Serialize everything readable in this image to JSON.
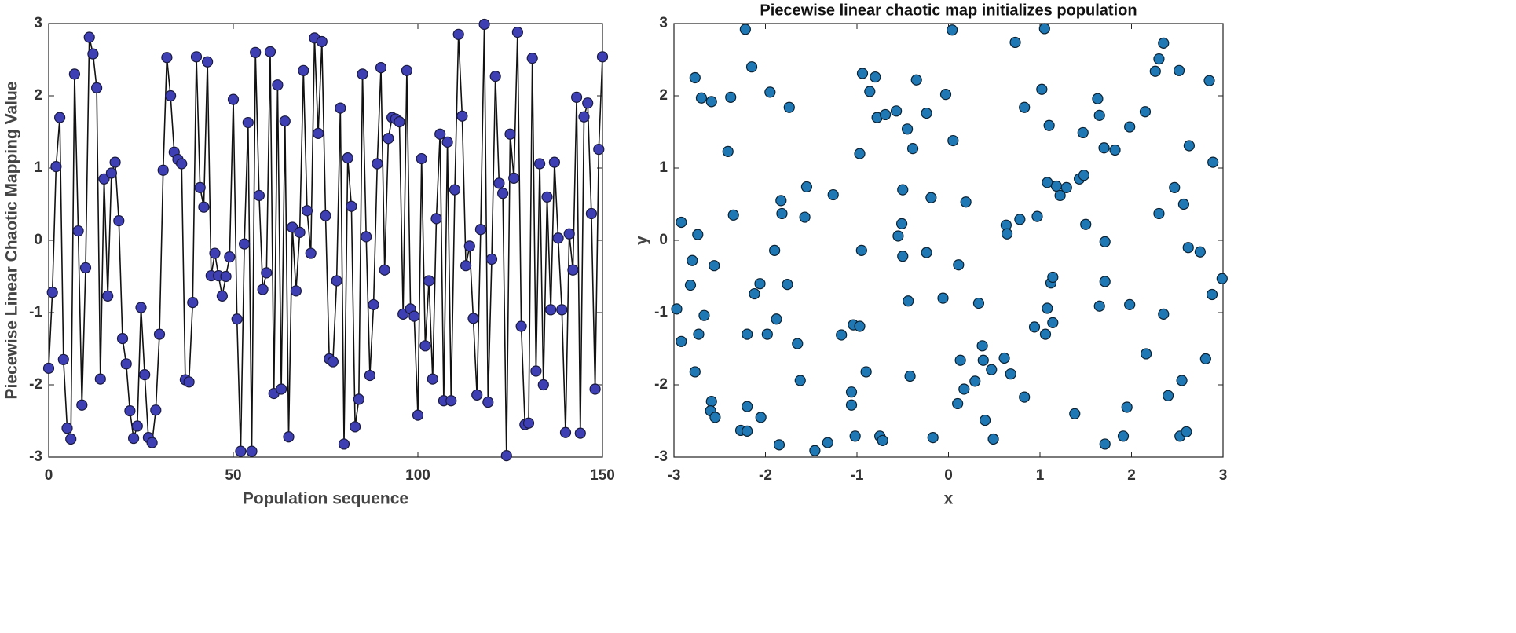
{
  "chart_data": [
    {
      "type": "line",
      "xlabel": "Population sequence",
      "ylabel": "Piecewise Linear Chaotic Mapping Value",
      "xlim": [
        0,
        150
      ],
      "ylim": [
        -3,
        3
      ],
      "xticks": [
        0,
        50,
        100,
        150
      ],
      "yticks": [
        -3,
        -2,
        -1,
        0,
        1,
        2,
        3
      ],
      "series": [
        {
          "color": "#3d3fb3",
          "x": [
            0,
            1,
            2,
            3,
            4,
            5,
            6,
            7,
            8,
            9,
            10,
            11,
            12,
            13,
            14,
            15,
            16,
            17,
            18,
            19,
            20,
            21,
            22,
            23,
            24,
            25,
            26,
            27,
            28,
            29,
            30,
            31,
            32,
            33,
            34,
            35,
            36,
            37,
            38,
            39,
            40,
            41,
            42,
            43,
            44,
            45,
            46,
            47,
            48,
            49,
            50,
            51,
            52,
            53,
            54,
            55,
            56,
            57,
            58,
            59,
            60,
            61,
            62,
            63,
            64,
            65,
            66,
            67,
            68,
            69,
            70,
            71,
            72,
            73,
            74,
            75,
            76,
            77,
            78,
            79,
            80,
            81,
            82,
            83,
            84,
            85,
            86,
            87,
            88,
            89,
            90,
            91,
            92,
            93,
            94,
            95,
            96,
            97,
            98,
            99,
            100,
            101,
            102,
            103,
            104,
            105,
            106,
            107,
            108,
            109,
            110,
            111,
            112,
            113,
            114,
            115,
            116,
            117,
            118,
            119,
            120,
            121,
            122,
            123,
            124,
            125,
            126,
            127,
            128,
            129,
            130,
            131,
            132,
            133,
            134,
            135,
            136,
            137,
            138,
            139,
            140,
            141,
            142,
            143,
            144,
            145,
            146,
            147,
            148,
            149,
            150
          ],
          "values": [
            -1.77,
            -0.72,
            1.02,
            1.7,
            -1.65,
            -2.6,
            -2.75,
            2.3,
            0.13,
            -2.28,
            -0.38,
            2.81,
            2.58,
            2.11,
            -1.92,
            0.85,
            -0.77,
            0.93,
            1.08,
            0.27,
            -1.36,
            -1.71,
            -2.36,
            -2.74,
            -2.57,
            -0.93,
            -1.86,
            -2.73,
            -2.8,
            -2.35,
            -1.3,
            0.97,
            2.53,
            2.0,
            1.22,
            1.12,
            1.06,
            -1.93,
            -1.96,
            -0.86,
            2.54,
            0.73,
            0.46,
            2.47,
            -0.49,
            -0.18,
            -0.49,
            -0.77,
            -0.5,
            -0.23,
            1.95,
            -1.09,
            -2.92,
            -0.05,
            1.63,
            -2.92,
            2.6,
            0.62,
            -0.68,
            -0.45,
            2.61,
            -2.12,
            2.15,
            -2.06,
            1.65,
            -2.72,
            0.18,
            -0.7,
            0.11,
            2.35,
            0.41,
            -0.18,
            2.8,
            1.48,
            2.75,
            0.34,
            -1.64,
            -1.68,
            -0.56,
            1.83,
            -2.82,
            1.14,
            0.47,
            -2.58,
            -2.2,
            2.3,
            0.05,
            -1.87,
            -0.89,
            1.06,
            2.39,
            -0.41,
            1.41,
            1.7,
            1.68,
            1.64,
            -1.02,
            2.35,
            -0.95,
            -1.05,
            -2.42,
            1.13,
            -1.46,
            -0.56,
            -1.92,
            0.3,
            1.47,
            -2.22,
            1.36,
            -2.22,
            0.7,
            2.85,
            1.72,
            -0.35,
            -0.08,
            -1.08,
            -2.14,
            0.15,
            2.99,
            -2.24,
            -0.26,
            2.27,
            0.79,
            0.65,
            -2.98,
            1.47,
            0.86,
            2.88,
            -1.19,
            -2.55,
            -2.53,
            2.52,
            -1.81,
            1.06,
            -2.0,
            0.6,
            -0.96,
            1.08,
            0.03,
            -0.96,
            -2.66,
            0.09,
            -0.41,
            1.98,
            -2.67,
            1.71,
            1.9,
            0.37,
            -2.06,
            1.26,
            2.54
          ]
        }
      ]
    },
    {
      "type": "scatter",
      "title": "Piecewise linear chaotic map initializes population",
      "xlabel": "x",
      "ylabel": "y",
      "xlim": [
        -3,
        3
      ],
      "ylim": [
        -3,
        3
      ],
      "xticks": [
        -3,
        -2,
        -1,
        0,
        1,
        2,
        3
      ],
      "yticks": [
        -3,
        -2,
        -1,
        0,
        1,
        2,
        3
      ],
      "series": [
        {
          "color": "#1f78b4",
          "x": [
            -2.97,
            -2.92,
            -2.92,
            -2.8,
            -2.82,
            -2.77,
            -2.77,
            -2.74,
            -2.73,
            -2.7,
            -2.67,
            -2.59,
            -2.56,
            -2.59,
            -2.6,
            -2.55,
            -2.41,
            -2.38,
            -2.35,
            -2.27,
            -2.22,
            -2.2,
            -2.2,
            -2.2,
            -2.15,
            -2.12,
            -2.06,
            -2.05,
            -1.98,
            -1.95,
            -1.9,
            -1.88,
            -1.85,
            -1.83,
            -1.82,
            -1.76,
            -1.74,
            -1.65,
            -1.62,
            -1.57,
            -1.55,
            -1.46,
            -1.32,
            -1.26,
            -1.17,
            -1.06,
            -1.06,
            -1.04,
            -1.02,
            -0.97,
            -0.97,
            -0.95,
            -0.94,
            -0.9,
            -0.86,
            -0.8,
            -0.78,
            -0.75,
            -0.72,
            -0.69,
            -0.57,
            -0.55,
            -0.51,
            -0.5,
            -0.5,
            -0.45,
            -0.44,
            -0.39,
            -0.35,
            -0.42,
            -0.24,
            -0.24,
            -0.19,
            -0.17,
            -0.06,
            -0.03,
            0.04,
            0.05,
            0.1,
            0.11,
            0.13,
            0.17,
            0.19,
            0.29,
            0.33,
            0.37,
            0.38,
            0.4,
            0.47,
            0.49,
            0.61,
            0.63,
            0.64,
            0.68,
            0.73,
            0.78,
            0.83,
            0.83,
            0.94,
            0.97,
            1.02,
            1.05,
            1.06,
            1.08,
            1.08,
            1.1,
            1.12,
            1.14,
            1.14,
            1.18,
            1.22,
            1.29,
            1.38,
            1.43,
            1.47,
            1.48,
            1.5,
            1.63,
            1.65,
            1.65,
            1.7,
            1.71,
            1.71,
            1.71,
            1.82,
            1.91,
            1.95,
            1.98,
            1.98,
            2.15,
            2.16,
            2.26,
            2.3,
            2.3,
            2.35,
            2.35,
            2.4,
            2.47,
            2.52,
            2.53,
            2.55,
            2.57,
            2.6,
            2.62,
            2.63,
            2.75,
            2.81,
            2.85,
            2.88,
            2.89,
            2.99
          ],
          "values": [
            -0.95,
            0.25,
            -1.4,
            -0.28,
            -0.62,
            2.25,
            -1.82,
            0.08,
            -1.3,
            1.97,
            -1.04,
            1.92,
            -0.35,
            -2.23,
            -2.36,
            -2.45,
            1.23,
            1.98,
            0.35,
            -2.63,
            2.92,
            -1.3,
            -2.3,
            -2.64,
            2.4,
            -0.74,
            -0.6,
            -2.45,
            -1.3,
            2.05,
            -0.14,
            -1.09,
            -2.83,
            0.55,
            0.37,
            -0.61,
            1.84,
            -1.43,
            -1.94,
            0.32,
            0.74,
            -2.91,
            -2.8,
            0.63,
            -1.31,
            -2.1,
            -2.28,
            -1.17,
            -2.71,
            1.2,
            -1.19,
            -0.14,
            2.31,
            -1.82,
            2.06,
            2.26,
            1.7,
            -2.71,
            -2.77,
            1.74,
            1.79,
            0.06,
            0.23,
            -0.22,
            0.7,
            1.54,
            -0.84,
            1.27,
            2.22,
            -1.88,
            1.76,
            -0.17,
            0.59,
            -2.73,
            -0.8,
            2.02,
            2.91,
            1.38,
            -2.26,
            -0.34,
            -1.66,
            -2.06,
            0.53,
            -1.95,
            -0.87,
            -1.46,
            -1.66,
            -2.49,
            -1.79,
            -2.75,
            -1.63,
            0.21,
            0.09,
            -1.85,
            2.74,
            0.29,
            -2.17,
            1.84,
            -1.2,
            0.33,
            2.09,
            2.93,
            -1.3,
            -0.94,
            0.8,
            1.59,
            -0.59,
            -1.14,
            -0.51,
            0.75,
            0.62,
            0.73,
            -2.4,
            0.85,
            1.49,
            0.9,
            0.22,
            1.96,
            -0.91,
            1.73,
            1.28,
            -0.02,
            -0.57,
            -2.82,
            1.25,
            -2.71,
            -2.31,
            1.57,
            -0.89,
            1.78,
            -1.57,
            2.34,
            2.51,
            0.37,
            2.73,
            -1.02,
            -2.15,
            0.73,
            2.35,
            -2.71,
            -1.94,
            0.5,
            -2.65,
            -0.1,
            1.31,
            -0.16,
            -1.64,
            2.21,
            -0.75,
            1.08,
            -0.53
          ]
        }
      ]
    }
  ]
}
